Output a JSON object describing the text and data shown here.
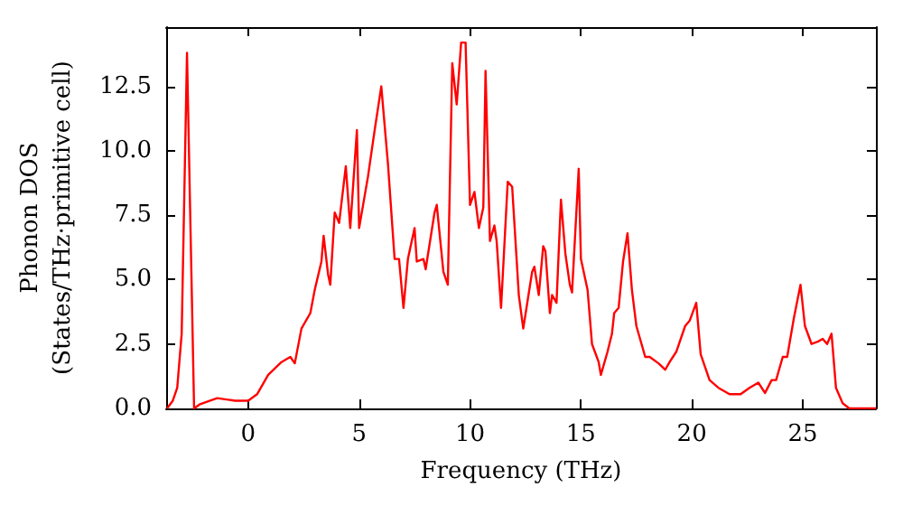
{
  "chart_data": {
    "type": "line",
    "xlabel": "Frequency (THz)",
    "ylabel": "Phonon DOS\n(States/THz·primitive cell)",
    "xlim": [
      -3.7,
      28.3
    ],
    "xticks": [
      0,
      5,
      10,
      15,
      20,
      25
    ],
    "ylim": [
      0,
      14.8
    ],
    "yticks": [
      {
        "value": 0,
        "label": "0.0"
      },
      {
        "value": 2.5,
        "label": "2.5"
      },
      {
        "value": 5,
        "label": "5.0"
      },
      {
        "value": 7.5,
        "label": "7.5"
      },
      {
        "value": 10,
        "label": "10.0"
      },
      {
        "value": 12.5,
        "label": "12.5"
      }
    ],
    "grid": false,
    "marker": "none",
    "line_style": "solid",
    "series": [
      {
        "color": "#ff0000",
        "x": [
          -3.66,
          -3.4,
          -3.2,
          -3.0,
          -2.76,
          -2.44,
          -2.2,
          -1.4,
          -0.6,
          0,
          0.4,
          0.9,
          1.5,
          1.9,
          2.1,
          2.4,
          2.8,
          3.0,
          3.3,
          3.4,
          3.6,
          3.7,
          3.9,
          4.1,
          4.4,
          4.6,
          4.9,
          5.0,
          5.4,
          5.7,
          6.0,
          6.3,
          6.6,
          6.8,
          7.0,
          7.2,
          7.5,
          7.6,
          7.9,
          8.0,
          8.4,
          8.5,
          8.8,
          9.0,
          9.2,
          9.4,
          9.6,
          9.8,
          10.0,
          10.2,
          10.4,
          10.6,
          10.7,
          10.9,
          11.1,
          11.2,
          11.4,
          11.7,
          11.9,
          12.2,
          12.4,
          12.6,
          12.8,
          12.9,
          13.1,
          13.3,
          13.4,
          13.6,
          13.7,
          13.9,
          14.1,
          14.3,
          14.5,
          14.6,
          14.9,
          15.0,
          15.3,
          15.5,
          15.8,
          15.9,
          16.2,
          16.4,
          16.5,
          16.7,
          16.9,
          17.1,
          17.3,
          17.5,
          17.9,
          18.1,
          18.5,
          18.8,
          19.0,
          19.3,
          19.7,
          19.9,
          20.2,
          20.4,
          20.8,
          21.2,
          21.7,
          22.2,
          22.6,
          23.0,
          23.3,
          23.6,
          23.8,
          24.1,
          24.3,
          24.6,
          24.9,
          25.1,
          25.4,
          25.7,
          25.9,
          26.1,
          26.3,
          26.5,
          26.8,
          27.1,
          28.3
        ],
        "values": [
          0,
          0.3,
          0.8,
          2.9,
          13.8,
          0,
          0.15,
          0.4,
          0.3,
          0.3,
          0.55,
          1.3,
          1.8,
          2.0,
          1.75,
          3.1,
          3.7,
          4.6,
          5.7,
          6.7,
          5.2,
          4.8,
          7.6,
          7.2,
          9.4,
          7.0,
          10.8,
          7.0,
          9.0,
          10.8,
          12.5,
          9.5,
          5.8,
          5.8,
          3.9,
          5.8,
          7.0,
          5.7,
          5.8,
          5.4,
          7.6,
          7.9,
          5.3,
          4.8,
          13.4,
          11.8,
          14.2,
          14.2,
          7.9,
          8.4,
          7.0,
          7.8,
          13.1,
          6.5,
          7.1,
          6.5,
          3.9,
          8.8,
          8.6,
          4.4,
          3.1,
          4.2,
          5.3,
          5.5,
          4.4,
          6.3,
          6.1,
          3.7,
          4.4,
          4.1,
          8.1,
          6.0,
          4.8,
          4.5,
          9.3,
          5.8,
          4.6,
          2.5,
          1.8,
          1.3,
          2.2,
          2.9,
          3.7,
          3.9,
          5.7,
          6.8,
          4.6,
          3.2,
          2.0,
          2.0,
          1.75,
          1.5,
          1.8,
          2.2,
          3.2,
          3.4,
          4.1,
          2.1,
          1.1,
          0.8,
          0.55,
          0.55,
          0.8,
          1.0,
          0.6,
          1.1,
          1.1,
          2.0,
          2.0,
          3.5,
          4.8,
          3.2,
          2.5,
          2.6,
          2.7,
          2.5,
          2.9,
          0.8,
          0.2,
          0,
          0
        ]
      }
    ]
  }
}
